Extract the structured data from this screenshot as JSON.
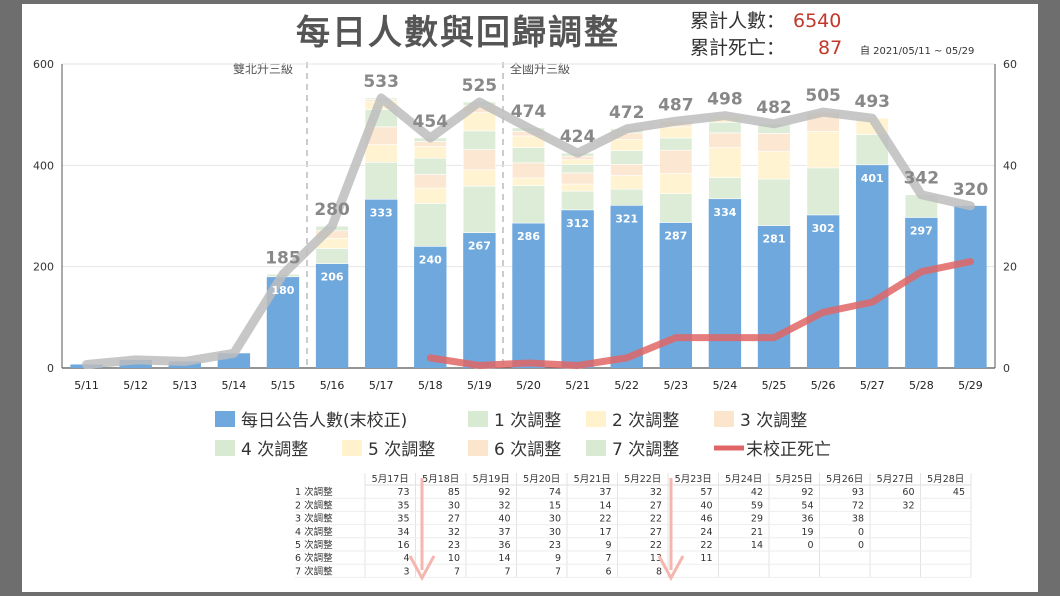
{
  "title": "每日人數與回歸調整",
  "stats": {
    "cum_cases_label": "累計人數：",
    "cum_cases_value": "6540",
    "cum_deaths_label": "累計死亡：",
    "cum_deaths_value": "87",
    "date_range": "自 2021/05/11 ~ 05/29"
  },
  "phases": {
    "taipei": "雙北升三級",
    "national": "全國升三級"
  },
  "legend": [
    {
      "label": "每日公告人數(末校正)",
      "color": "#6fa8dc",
      "kind": "box"
    },
    {
      "label": "1 次調整",
      "color": "#d9ead3",
      "kind": "box"
    },
    {
      "label": "2 次調整",
      "color": "#fff2cc",
      "kind": "box"
    },
    {
      "label": "3 次調整",
      "color": "#fce5cd",
      "kind": "box"
    },
    {
      "label": "4 次調整",
      "color": "#d9ead3",
      "kind": "box"
    },
    {
      "label": "5 次調整",
      "color": "#fff2cc",
      "kind": "box"
    },
    {
      "label": "6 次調整",
      "color": "#fce5cd",
      "kind": "box"
    },
    {
      "label": "7 次調整",
      "color": "#d9ead3",
      "kind": "box"
    },
    {
      "label": "末校正死亡",
      "color": "#e06666",
      "kind": "line"
    }
  ],
  "chart_data": {
    "type": "bar",
    "categories": [
      "5/11",
      "5/12",
      "5/13",
      "5/14",
      "5/15",
      "5/16",
      "5/17",
      "5/18",
      "5/19",
      "5/20",
      "5/21",
      "5/22",
      "5/23",
      "5/24",
      "5/25",
      "5/26",
      "5/27",
      "5/28",
      "5/29"
    ],
    "y_ticks_left": [
      "0",
      "200",
      "400",
      "600"
    ],
    "y_ticks_right": [
      "0",
      "20",
      "40",
      "60"
    ],
    "ylim_left": [
      0,
      600
    ],
    "ylim_right": [
      0,
      60
    ],
    "reported": [
      7,
      16,
      13,
      29,
      180,
      206,
      333,
      240,
      267,
      286,
      312,
      321,
      287,
      334,
      281,
      302,
      401,
      297,
      320
    ],
    "reported_labels": [
      "",
      "",
      "",
      "",
      "180",
      "206",
      "333",
      "240",
      "267",
      "286",
      "312",
      "321",
      "287",
      "334",
      "281",
      "302",
      "401",
      "297",
      ""
    ],
    "adjustments": [
      [
        0,
        0,
        0,
        0,
        0,
        0,
        0
      ],
      [
        0,
        0,
        0,
        0,
        0,
        0,
        0
      ],
      [
        0,
        0,
        0,
        0,
        0,
        0,
        0
      ],
      [
        0,
        0,
        0,
        0,
        0,
        0,
        0
      ],
      [
        5,
        0,
        0,
        0,
        0,
        0,
        0
      ],
      [
        30,
        20,
        15,
        9,
        0,
        0,
        0
      ],
      [
        73,
        35,
        35,
        34,
        16,
        4,
        3
      ],
      [
        85,
        30,
        27,
        32,
        23,
        10,
        7
      ],
      [
        92,
        32,
        40,
        37,
        36,
        14,
        7
      ],
      [
        74,
        15,
        30,
        30,
        23,
        9,
        7
      ],
      [
        37,
        14,
        22,
        17,
        9,
        7,
        6
      ],
      [
        32,
        27,
        22,
        27,
        22,
        13,
        8
      ],
      [
        57,
        40,
        46,
        24,
        22,
        11,
        0
      ],
      [
        42,
        59,
        29,
        21,
        14,
        0,
        0
      ],
      [
        92,
        54,
        36,
        19,
        0,
        0,
        0
      ],
      [
        93,
        72,
        38,
        0,
        0,
        0,
        0
      ],
      [
        60,
        32,
        0,
        0,
        0,
        0,
        0
      ],
      [
        45,
        0,
        0,
        0,
        0,
        0,
        0
      ],
      [
        0,
        0,
        0,
        0,
        0,
        0,
        0
      ]
    ],
    "totals": [
      7,
      16,
      13,
      29,
      185,
      280,
      533,
      454,
      525,
      474,
      424,
      472,
      487,
      498,
      482,
      505,
      493,
      342,
      320
    ],
    "total_labels": [
      "",
      "",
      "",
      "",
      "185",
      "280",
      "533",
      "454",
      "525",
      "474",
      "424",
      "472",
      "487",
      "498",
      "482",
      "505",
      "493",
      "342",
      "320"
    ],
    "deaths_daily": [
      null,
      null,
      null,
      null,
      null,
      null,
      null,
      2,
      0.5,
      1,
      0.5,
      2,
      6,
      6,
      6,
      11,
      13,
      19,
      21
    ],
    "segment_colors": [
      "#d9ead3",
      "#fff2cc",
      "#fce5cd",
      "#d9ead3",
      "#fff2cc",
      "#fce5cd",
      "#d9ead3"
    ]
  },
  "table": {
    "headers": [
      "5月17日",
      "5月18日",
      "5月19日",
      "5月20日",
      "5月21日",
      "5月22日",
      "5月23日",
      "5月24日",
      "5月25日",
      "5月26日",
      "5月27日",
      "5月28日"
    ],
    "rows": [
      {
        "label": "1 次調整",
        "cells": [
          "73",
          "85",
          "92",
          "74",
          "37",
          "32",
          "57",
          "42",
          "92",
          "93",
          "60",
          "45"
        ]
      },
      {
        "label": "2 次調整",
        "cells": [
          "35",
          "30",
          "32",
          "15",
          "14",
          "27",
          "40",
          "59",
          "54",
          "72",
          "32",
          ""
        ]
      },
      {
        "label": "3 次調整",
        "cells": [
          "35",
          "27",
          "40",
          "30",
          "22",
          "22",
          "46",
          "29",
          "36",
          "38",
          "",
          ""
        ]
      },
      {
        "label": "4 次調整",
        "cells": [
          "34",
          "32",
          "37",
          "30",
          "17",
          "27",
          "24",
          "21",
          "19",
          "0",
          "",
          ""
        ]
      },
      {
        "label": "5 次調整",
        "cells": [
          "16",
          "23",
          "36",
          "23",
          "9",
          "22",
          "22",
          "14",
          "0",
          "0",
          "",
          ""
        ]
      },
      {
        "label": "6 次調整",
        "cells": [
          "4",
          "10",
          "14",
          "9",
          "7",
          "13",
          "11",
          "",
          "",
          "",
          "",
          ""
        ]
      },
      {
        "label": "7 次調整",
        "cells": [
          "3",
          "7",
          "7",
          "7",
          "6",
          "8",
          "",
          "",
          "",
          "",
          "",
          ""
        ]
      }
    ]
  }
}
